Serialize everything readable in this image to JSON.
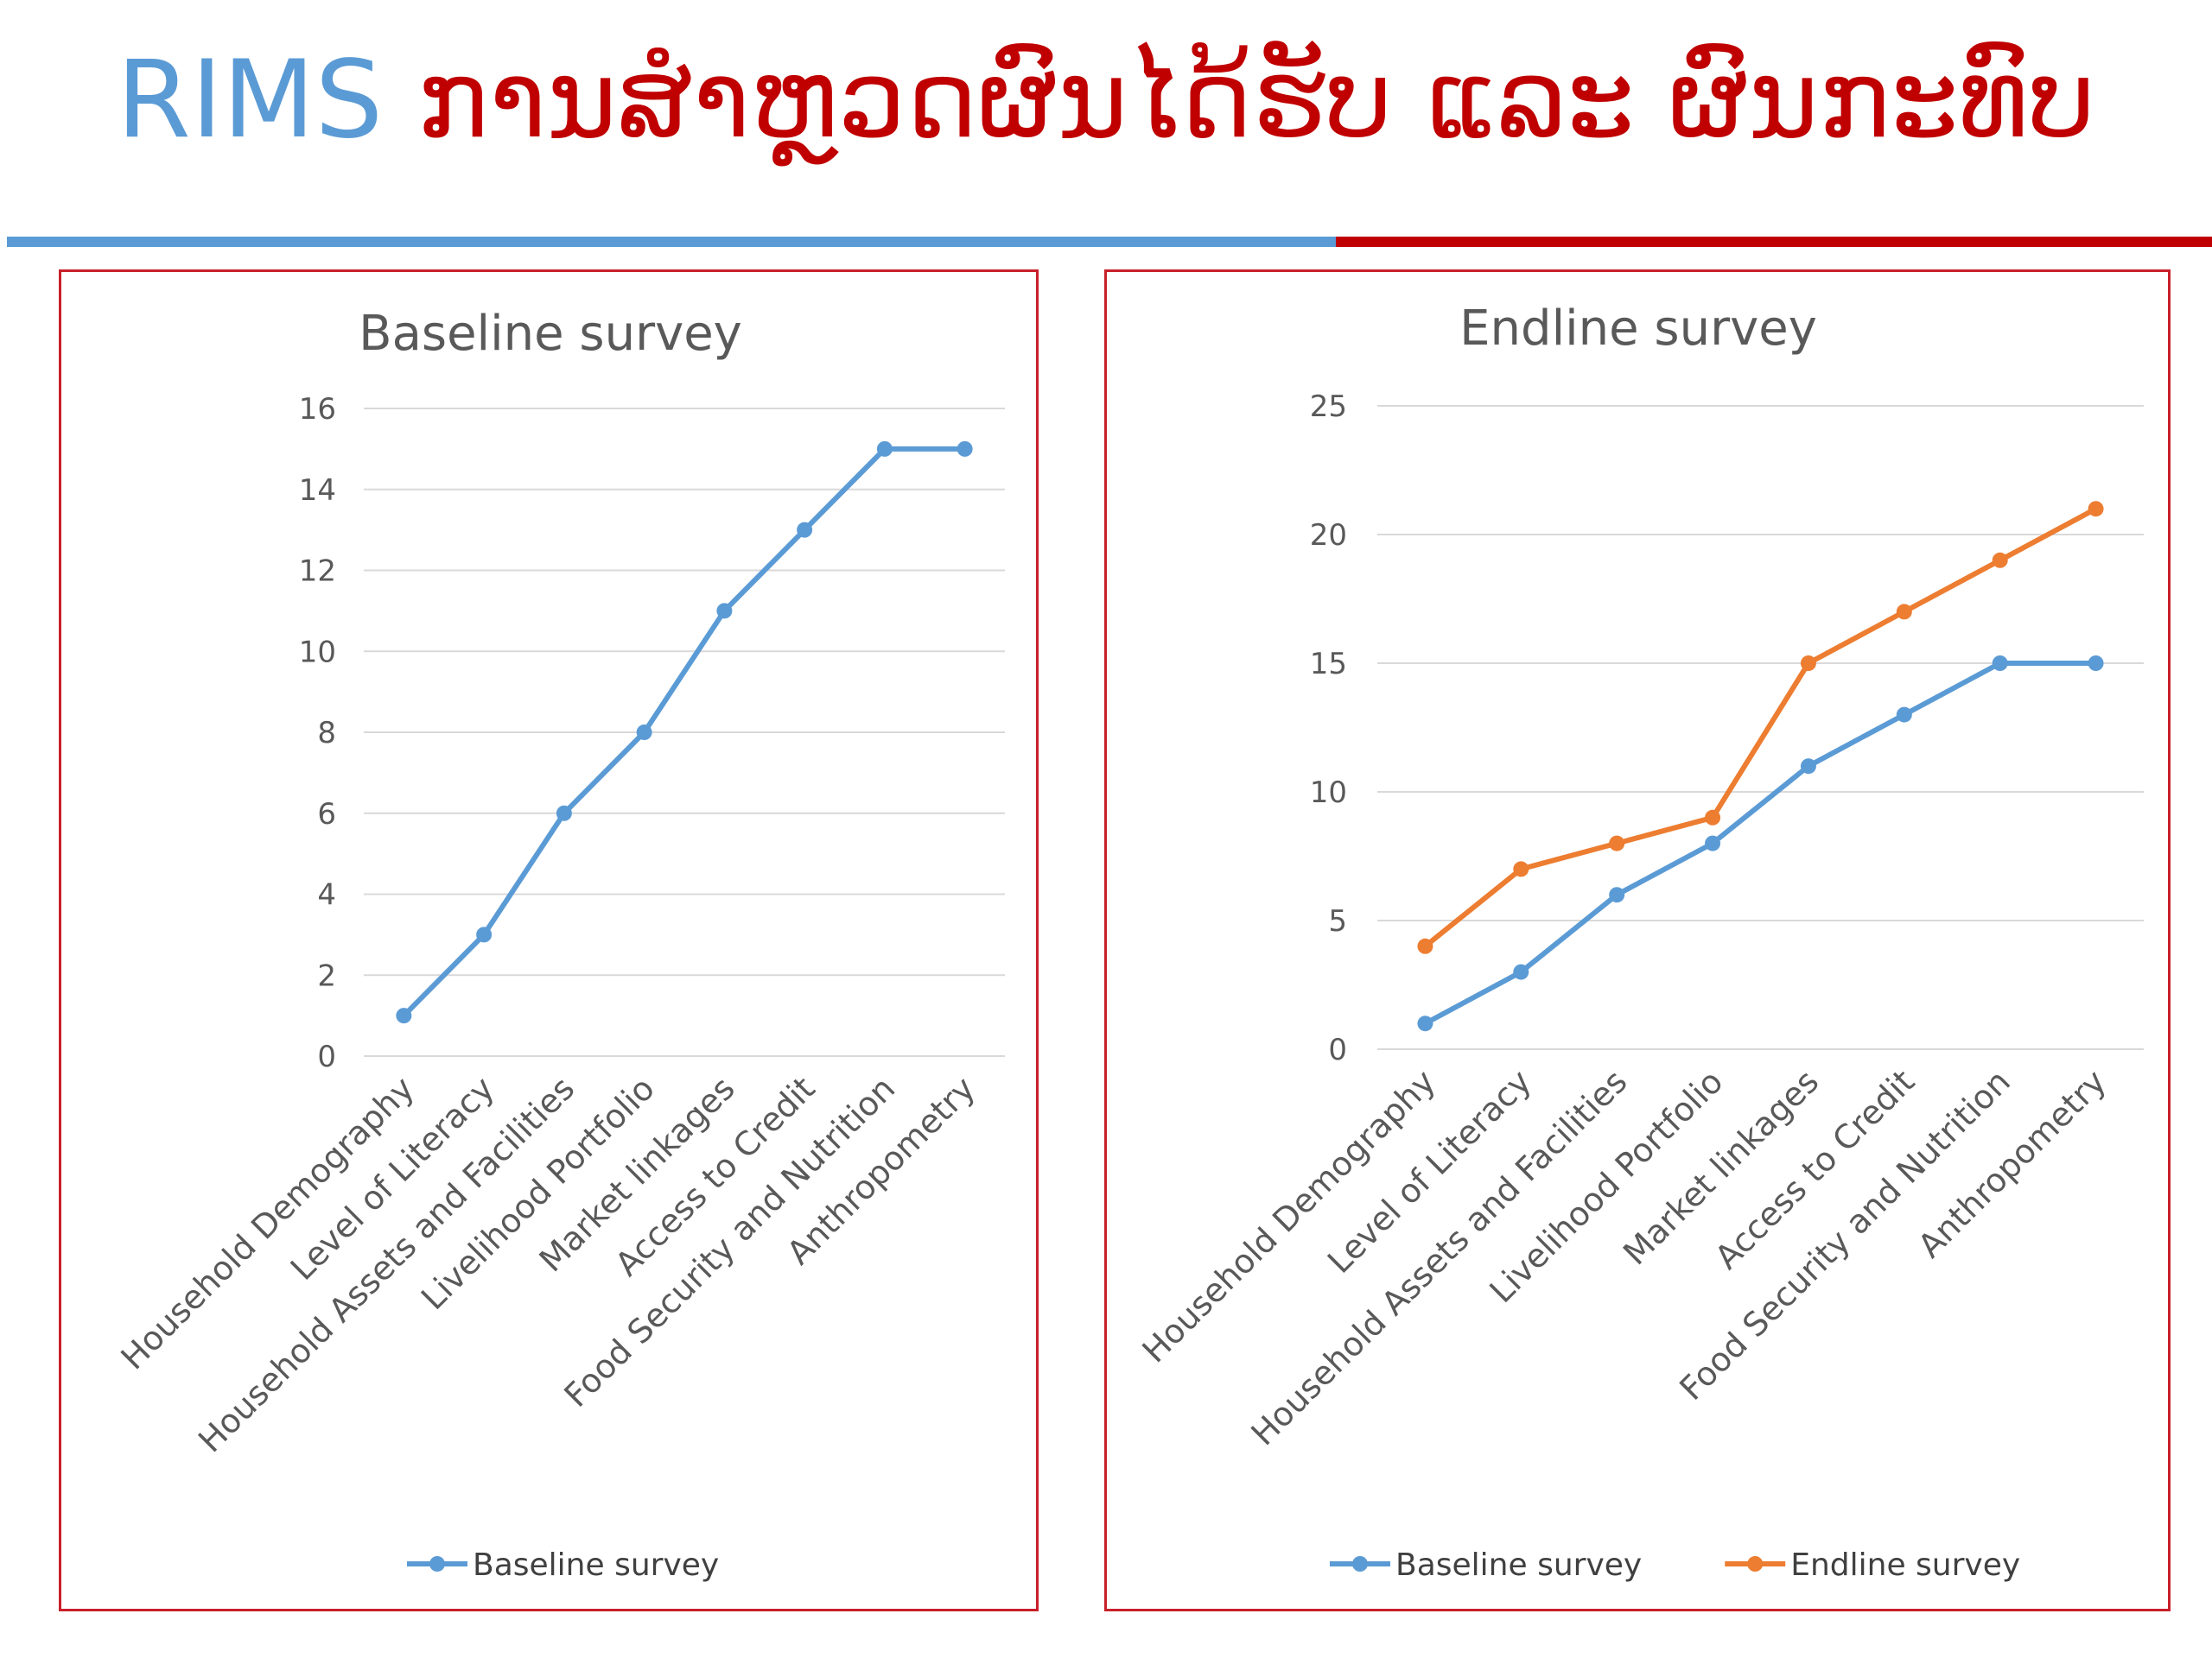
{
  "slide": {
    "title_prefix": "RIMS",
    "title_main": "ການສຳຫຼວດຜົນໄດ້ຮັບ ແລະ ຜົນກະທົບ"
  },
  "colors": {
    "title_blue": "#5b9bd5",
    "title_red": "#c00000",
    "baseline_series": "#5b9bd5",
    "endline_series": "#ed7d31",
    "panel_border": "#c8202a",
    "gridline": "#d9d9d9"
  },
  "chart_data": [
    {
      "type": "line",
      "title": "Baseline survey",
      "categories": [
        "Household Demography",
        "Level of Literacy",
        "Household Assets and Facilities",
        "Livelihood Portfolio",
        "Market linkages",
        "Access to Credit",
        "Food Security and Nutrition",
        "Anthropometry"
      ],
      "series": [
        {
          "name": "Baseline survey",
          "color": "#5b9bd5",
          "values": [
            1,
            3,
            6,
            8,
            11,
            13,
            15,
            15
          ]
        }
      ],
      "ylim": [
        0,
        16
      ],
      "yticks": [
        0,
        2,
        4,
        6,
        8,
        10,
        12,
        14,
        16
      ],
      "grid": true,
      "legend": "bottom"
    },
    {
      "type": "line",
      "title": "Endline survey",
      "categories": [
        "Household Demography",
        "Level of Literacy",
        "Household Assets and Facilities",
        "Livelihood Portfolio",
        "Market linkages",
        "Access to Credit",
        "Food Security and Nutrition",
        "Anthropometry"
      ],
      "series": [
        {
          "name": "Baseline survey",
          "color": "#5b9bd5",
          "values": [
            1,
            3,
            6,
            8,
            11,
            13,
            15,
            15
          ]
        },
        {
          "name": "Endline survey",
          "color": "#ed7d31",
          "values": [
            4,
            7,
            8,
            9,
            15,
            17,
            19,
            21
          ]
        }
      ],
      "ylim": [
        0,
        25
      ],
      "yticks": [
        0,
        5,
        10,
        15,
        20,
        25
      ],
      "grid": true,
      "legend": "bottom"
    }
  ]
}
